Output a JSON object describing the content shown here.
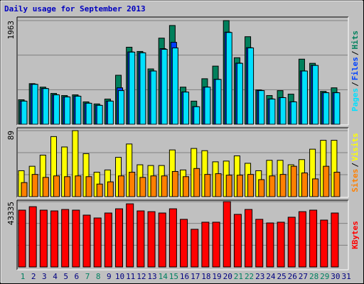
{
  "chart_data": [
    {
      "type": "bar",
      "title": "Daily usage for September 2013",
      "title_color": "#0000c0",
      "categories": [
        "1",
        "2",
        "3",
        "4",
        "5",
        "6",
        "7",
        "8",
        "9",
        "10",
        "11",
        "12",
        "13",
        "14",
        "15",
        "16",
        "17",
        "18",
        "19",
        "20",
        "21",
        "22",
        "23",
        "24",
        "25",
        "26",
        "27",
        "28",
        "29",
        "30",
        "31"
      ],
      "weekends": [
        "1",
        "7",
        "8",
        "14",
        "15",
        "21",
        "22",
        "28",
        "29"
      ],
      "weekend_color": "#008060",
      "weekday_color": "#000080",
      "legend_separator": "/",
      "ylim": [
        0,
        1963
      ],
      "yticks": [
        1963
      ],
      "series": [
        {
          "name": "Hits",
          "color": "#00805c",
          "values": [
            464,
            769,
            703,
            584,
            544,
            557,
            424,
            385,
            477,
            928,
            1459,
            1379,
            1048,
            1631,
            1870,
            703,
            438,
            862,
            1101,
            1963,
            1260,
            1658,
            650,
            544,
            637,
            570,
            1233,
            1154,
            623,
            690,
            null
          ]
        },
        {
          "name": "Files",
          "color": "#0040ff",
          "values": [
            440,
            760,
            680,
            560,
            520,
            535,
            400,
            360,
            440,
            690,
            1370,
            1356,
            1010,
            1432,
            1552,
            612,
            334,
            706,
            852,
            1745,
            1158,
            1450,
            640,
            480,
            506,
            426,
            1010,
            1116,
            600,
            600,
            null
          ]
        },
        {
          "name": "Pages",
          "color": "#00e0ff",
          "values": [
            438,
            756,
            676,
            557,
            517,
            531,
            398,
            358,
            438,
            637,
            1366,
            1353,
            1008,
            1419,
            1446,
            610,
            332,
            703,
            849,
            1738,
            1154,
            1446,
            637,
            477,
            504,
            424,
            1008,
            1114,
            597,
            597,
            null
          ]
        }
      ]
    },
    {
      "type": "bar",
      "legend_separator": "/",
      "ylim": [
        0,
        89
      ],
      "yticks": [
        89
      ],
      "series": [
        {
          "name": "Visits",
          "color": "#ffff00",
          "values": [
            35,
            41,
            56,
            81,
            67,
            89,
            58,
            33,
            36,
            53,
            71,
            43,
            42,
            42,
            63,
            36,
            65,
            62,
            47,
            48,
            55,
            45,
            35,
            49,
            49,
            43,
            50,
            64,
            76,
            76,
            null
          ]
        },
        {
          "name": "Sites",
          "color": "#ff8000",
          "values": [
            19,
            30,
            26,
            28,
            27,
            28,
            27,
            17,
            20,
            28,
            33,
            26,
            28,
            28,
            34,
            27,
            38,
            30,
            31,
            29,
            29,
            30,
            23,
            28,
            30,
            41,
            32,
            24,
            41,
            33,
            null
          ]
        }
      ]
    },
    {
      "type": "bar",
      "ylim": [
        0,
        43335
      ],
      "yticks": [
        43335
      ],
      "series": [
        {
          "name": "KBytes",
          "color": "#ff0000",
          "values": [
            37700,
            40000,
            37700,
            37200,
            38150,
            37700,
            34400,
            32500,
            35800,
            38600,
            41900,
            37200,
            36700,
            35800,
            38600,
            31600,
            25000,
            29700,
            29700,
            43335,
            34900,
            38150,
            31600,
            29200,
            29700,
            33000,
            36700,
            37700,
            31100,
            35800,
            null
          ]
        }
      ]
    }
  ]
}
